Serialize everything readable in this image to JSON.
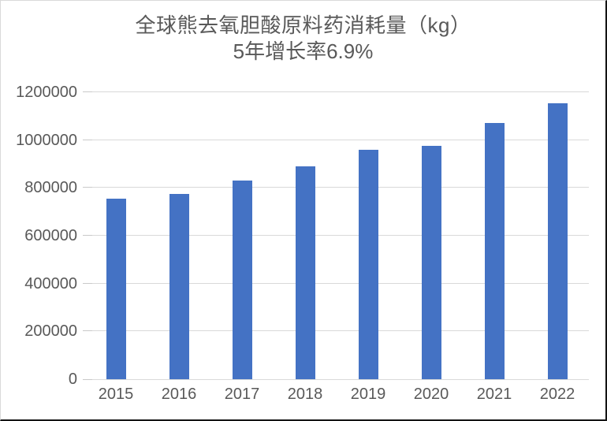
{
  "chart_data": {
    "type": "bar",
    "title": "全球熊去氧胆酸原料药消耗量（kg）",
    "subtitle": "5年增长率6.9%",
    "categories": [
      "2015",
      "2016",
      "2017",
      "2018",
      "2019",
      "2020",
      "2021",
      "2022"
    ],
    "values": [
      755000,
      775000,
      830000,
      890000,
      960000,
      975000,
      1070000,
      1155000
    ],
    "ylim": [
      0,
      1200000
    ],
    "ytick_interval": 200000,
    "yticks": [
      0,
      200000,
      400000,
      600000,
      800000,
      1000000,
      1200000
    ],
    "ytick_labels": [
      "0",
      "200000",
      "400000",
      "600000",
      "800000",
      "1000000",
      "1200000"
    ],
    "grid": true,
    "legend_position": "none",
    "colors": {
      "bar": "#4472C4",
      "gridline": "#D9D9D9",
      "tick": "#C9C9C9",
      "text": "#595959"
    }
  }
}
